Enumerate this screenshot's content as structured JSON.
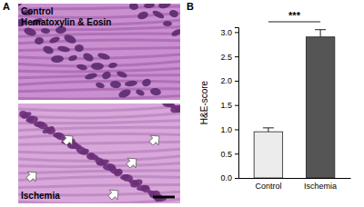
{
  "panel_a": {
    "label": "A",
    "title": "Hematoxylin & Eosin",
    "images": [
      "Control",
      "Ischemia"
    ]
  },
  "chart_data": {
    "type": "bar",
    "panel_label": "B",
    "y_label": "H&E-score",
    "categories": [
      "Control",
      "Ischemia"
    ],
    "values": [
      0.95,
      2.9
    ],
    "errors": [
      0.08,
      0.15
    ],
    "colors": [
      "#ececec",
      "#555555"
    ],
    "ylim": [
      0,
      3.1
    ],
    "yticks": [
      {
        "value": 0,
        "label": "0.0"
      },
      {
        "value": 0.5,
        "label": "0.5"
      },
      {
        "value": 1,
        "label": "1.0"
      },
      {
        "value": 1.5,
        "label": "1.5"
      },
      {
        "value": 2,
        "label": "2.0"
      },
      {
        "value": 2.5,
        "label": "2.5"
      },
      {
        "value": 3,
        "label": "3.0"
      }
    ],
    "annotations": [
      "***"
    ]
  }
}
